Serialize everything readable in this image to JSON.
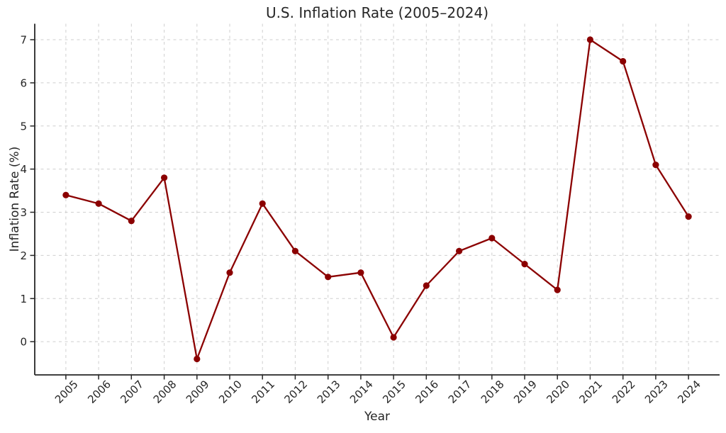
{
  "chart_data": {
    "type": "line",
    "title": "U.S. Inflation Rate (2005–2024)",
    "xlabel": "Year",
    "ylabel": "Inflation Rate (%)",
    "x": [
      2005,
      2006,
      2007,
      2008,
      2009,
      2010,
      2011,
      2012,
      2013,
      2014,
      2015,
      2016,
      2017,
      2018,
      2019,
      2020,
      2021,
      2022,
      2023,
      2024
    ],
    "values": [
      3.4,
      3.2,
      2.8,
      3.8,
      -0.4,
      1.6,
      3.2,
      2.1,
      1.5,
      1.6,
      0.1,
      1.3,
      2.1,
      2.4,
      1.8,
      1.2,
      7.0,
      6.5,
      4.1,
      2.9
    ],
    "series_name": "Inflation Rate (%)",
    "y_ticks": [
      0,
      1,
      2,
      3,
      4,
      5,
      6,
      7
    ],
    "xlim": [
      2004.05,
      2024.95
    ],
    "ylim": [
      -0.77,
      7.37
    ],
    "legend": "none",
    "grid": {
      "show": true,
      "style": "dashed",
      "color": "#cfcfcf"
    },
    "line_color": "#8b0000",
    "marker": "circle",
    "axis_color": "#262626"
  }
}
